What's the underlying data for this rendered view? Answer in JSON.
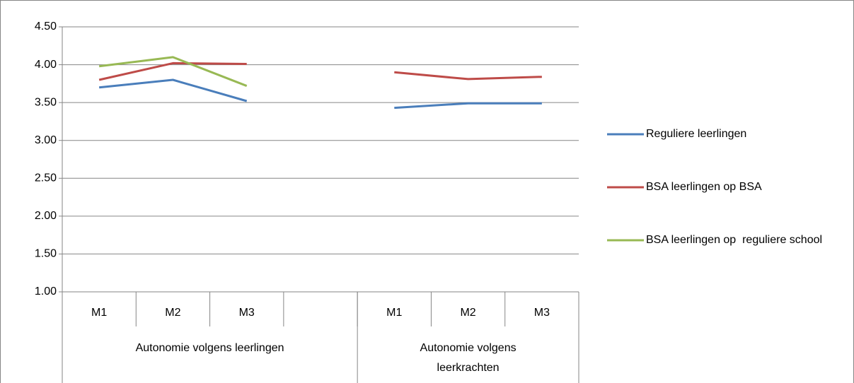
{
  "chart_data": {
    "type": "line",
    "categories": [
      "M1",
      "M2",
      "M3",
      null,
      "M1",
      "M2",
      "M3"
    ],
    "groups": [
      {
        "label": "Autonomie volgens leerlingen",
        "span": 4
      },
      {
        "label": "Autonomie volgens leerkrachten",
        "span": 3
      }
    ],
    "series": [
      {
        "name": "Reguliere leerlingen",
        "color": "#4a7ebb",
        "values": [
          3.7,
          3.8,
          3.52,
          null,
          3.43,
          3.49,
          3.49
        ]
      },
      {
        "name": "BSA leerlingen op BSA",
        "color": "#be4b48",
        "values": [
          3.8,
          4.02,
          4.01,
          null,
          3.9,
          3.81,
          3.84
        ]
      },
      {
        "name": "BSA leerlingen op  reguliere school",
        "color": "#98b954",
        "values": [
          3.98,
          4.1,
          3.72,
          null,
          null,
          null,
          null
        ]
      }
    ],
    "ylim": [
      1,
      4.5
    ],
    "yticks": [
      {
        "value": 1,
        "label": "1.00"
      },
      {
        "value": 1.5,
        "label": "1.50"
      },
      {
        "value": 2,
        "label": "2.00"
      },
      {
        "value": 2.5,
        "label": "2.50"
      },
      {
        "value": 3,
        "label": "3.00"
      },
      {
        "value": 3.5,
        "label": "3.50"
      },
      {
        "value": 4,
        "label": "4.00"
      },
      {
        "value": 4.5,
        "label": "4.50"
      }
    ],
    "grid": true,
    "legend": "right"
  }
}
